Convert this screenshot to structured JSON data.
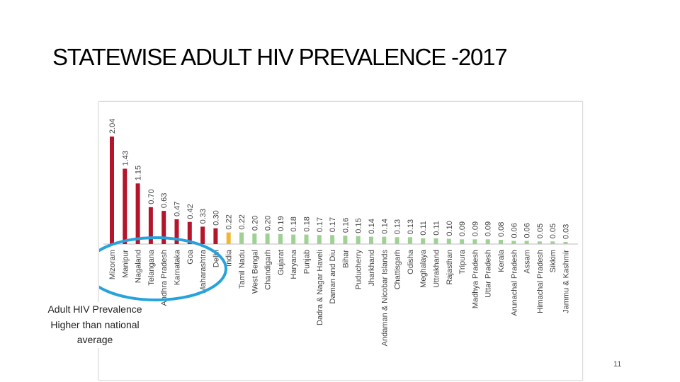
{
  "slide": {
    "title": "STATEWISE ADULT HIV PREVALENCE -2017",
    "callout_text": "Adult HIV Prevalence Higher than national average",
    "page_number": "11"
  },
  "colors": {
    "above_national": "#b5152b",
    "national": "#f2b632",
    "below_national": "#9ed193",
    "highlight_ellipse": "#27a3dc"
  },
  "chart_data": {
    "type": "bar",
    "title": "",
    "xlabel": "",
    "ylabel": "",
    "ylim": [
      0,
      2.2
    ],
    "grid": false,
    "categories": [
      "Mizoram",
      "Manipur",
      "Nagaland",
      "Telangana",
      "Andhra Pradesh",
      "Karnataka",
      "Goa",
      "Maharashtra",
      "Delhi",
      "India",
      "Tamil Nadu",
      "West Bengal",
      "Chandigarh",
      "Gujarat",
      "Haryana",
      "Punjab",
      "Dadra & Nagar Haveli",
      "Daman and Diu",
      "Bihar",
      "Puducherry",
      "Jharkhand",
      "Andaman & Nicobar Islands",
      "Chattisgarh",
      "Odisha",
      "Meghalaya",
      "Uttrakhand",
      "Rajasthan",
      "Tripura",
      "Madhya Pradesh",
      "Uttar Pradesh",
      "Kerala",
      "Arunachal Pradesh",
      "Assam",
      "Himachal Pradesh",
      "Sikkim",
      "Jammu & Kashmir"
    ],
    "values": [
      2.04,
      1.43,
      1.15,
      0.7,
      0.63,
      0.47,
      0.42,
      0.33,
      0.3,
      0.22,
      0.22,
      0.2,
      0.2,
      0.19,
      0.18,
      0.18,
      0.17,
      0.17,
      0.16,
      0.15,
      0.14,
      0.14,
      0.13,
      0.13,
      0.11,
      0.11,
      0.1,
      0.09,
      0.09,
      0.09,
      0.08,
      0.06,
      0.06,
      0.05,
      0.05,
      0.03
    ],
    "value_labels": [
      "2.04",
      "1.43",
      "1.15",
      "0.70",
      "0.63",
      "0.47",
      "0.42",
      "0.33",
      "0.30",
      "0.22",
      "0.22",
      "0.20",
      "0.20",
      "0.19",
      "0.18",
      "0.18",
      "0.17",
      "0.17",
      "0.16",
      "0.15",
      "0.14",
      "0.14",
      "0.13",
      "0.13",
      "0.11",
      "0.11",
      "0.10",
      "0.09",
      "0.09",
      "0.09",
      "0.08",
      "0.06",
      "0.06",
      "0.05",
      "0.05",
      "0.03"
    ],
    "groups": [
      "above",
      "above",
      "above",
      "above",
      "above",
      "above",
      "above",
      "above",
      "above",
      "national",
      "below",
      "below",
      "below",
      "below",
      "below",
      "below",
      "below",
      "below",
      "below",
      "below",
      "below",
      "below",
      "below",
      "below",
      "below",
      "below",
      "below",
      "below",
      "below",
      "below",
      "below",
      "below",
      "below",
      "below",
      "below",
      "below"
    ],
    "annotation": "Adult HIV Prevalence Higher than national average"
  }
}
